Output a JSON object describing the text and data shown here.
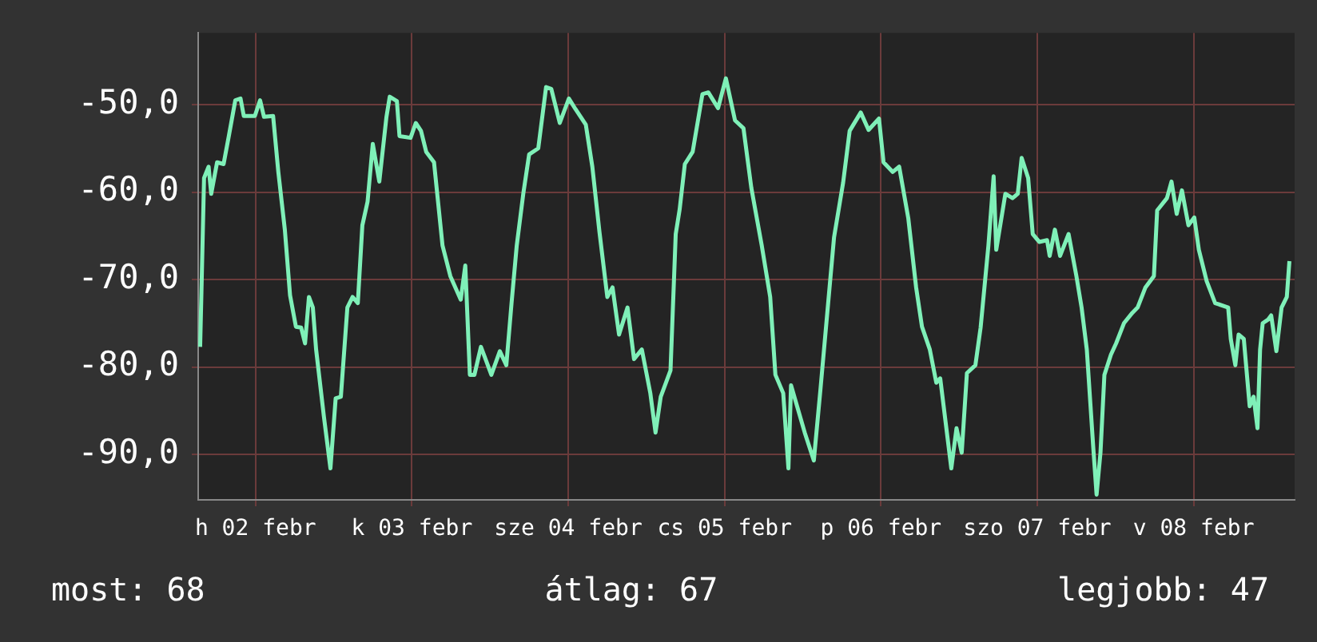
{
  "chart_data": {
    "type": "line",
    "x": [
      "--02-02T03:30",
      "--02-02T03:42",
      "--02-02T04:06",
      "--02-02T04:48",
      "--02-02T05:12",
      "--02-02T06:06",
      "--02-02T07:06",
      "--02-02T07:54",
      "--02-02T08:54",
      "--02-02T09:42",
      "--02-02T10:12",
      "--02-02T11:54",
      "--02-02T12:42",
      "--02-02T13:18",
      "--02-02T14:42",
      "--02-02T15:30",
      "--02-02T16:30",
      "--02-02T17:18",
      "--02-02T18:12",
      "--02-02T19:00",
      "--02-02T19:36",
      "--02-02T20:12",
      "--02-02T20:48",
      "--02-02T21:18",
      "--02-02T22:30",
      "--02-02T23:30",
      "--02-03T00:18",
      "--02-03T01:06",
      "--02-03T02:06",
      "--02-03T02:54",
      "--02-03T03:42",
      "--02-03T04:24",
      "--02-03T05:12",
      "--02-03T06:00",
      "--02-03T07:00",
      "--02-03T08:06",
      "--02-03T08:36",
      "--02-03T09:42",
      "--02-03T10:06",
      "--02-03T11:48",
      "--02-03T12:36",
      "--02-03T13:24",
      "--02-03T14:12",
      "--02-03T15:24",
      "--02-03T16:42",
      "--02-03T17:54",
      "--02-03T19:30",
      "--02-03T20:12",
      "--02-03T20:54",
      "--02-03T21:36",
      "--02-03T22:36",
      "--02-03T23:12",
      "--02-04T00:12",
      "--02-04T01:30",
      "--02-04T02:30",
      "--02-04T03:18",
      "--02-04T04:06",
      "--02-04T05:06",
      "--02-04T06:00",
      "--02-04T07:24",
      "--02-04T08:36",
      "--02-04T09:24",
      "--02-04T10:42",
      "--02-04T12:06",
      "--02-04T13:06",
      "--02-04T14:42",
      "--02-04T15:42",
      "--02-04T16:48",
      "--02-04T18:00",
      "--02-04T18:48",
      "--02-04T19:48",
      "--02-04T21:06",
      "--02-04T22:06",
      "--02-04T23:18",
      "--02-05T00:36",
      "--02-05T01:24",
      "--02-05T02:12",
      "--02-05T03:42",
      "--02-05T04:30",
      "--02-05T05:06",
      "--02-05T05:54",
      "--02-05T07:06",
      "--02-05T08:36",
      "--02-05T09:30",
      "--02-05T11:00",
      "--02-05T12:12",
      "--02-05T13:36",
      "--02-05T14:54",
      "--02-05T16:06",
      "--02-05T17:42",
      "--02-05T19:00",
      "--02-05T19:48",
      "--02-05T21:00",
      "--02-05T21:48",
      "--02-05T22:12",
      "--02-06T00:18",
      "--02-06T01:42",
      "--02-06T02:42",
      "--02-06T03:54",
      "--02-06T04:48",
      "--02-06T06:12",
      "--02-06T07:12",
      "--02-06T08:54",
      "--02-06T10:06",
      "--02-06T11:42",
      "--02-06T12:24",
      "--02-06T13:48",
      "--02-06T14:48",
      "--02-06T16:12",
      "--02-06T17:24",
      "--02-06T18:18",
      "--02-06T19:30",
      "--02-06T20:30",
      "--02-06T21:06",
      "--02-06T22:48",
      "--02-06T23:36",
      "--02-07T00:24",
      "--02-07T01:12",
      "--02-07T02:30",
      "--02-07T03:18",
      "--02-07T04:30",
      "--02-07T05:18",
      "--02-07T05:42",
      "--02-07T07:06",
      "--02-07T08:12",
      "--02-07T09:00",
      "--02-07T09:36",
      "--02-07T10:36",
      "--02-07T11:18",
      "--02-07T12:18",
      "--02-07T13:30",
      "--02-07T13:54",
      "--02-07T14:42",
      "--02-07T15:30",
      "--02-07T16:48",
      "--02-07T18:00",
      "--02-07T18:48",
      "--02-07T19:36",
      "--02-07T20:36",
      "--02-07T21:06",
      "--02-07T21:42",
      "--02-07T22:18",
      "--02-07T23:18",
      "--02-08T00:06",
      "--02-08T01:18",
      "--02-08T02:36",
      "--02-08T03:24",
      "--02-08T04:36",
      "--02-08T05:54",
      "--02-08T06:24",
      "--02-08T07:54",
      "--02-08T08:36",
      "--02-08T09:24",
      "--02-08T10:12",
      "--02-08T11:12",
      "--02-08T12:06",
      "--02-08T12:48",
      "--02-08T14:00",
      "--02-08T15:18",
      "--02-08T17:18",
      "--02-08T17:42",
      "--02-08T18:24",
      "--02-08T18:54",
      "--02-08T19:42",
      "--02-08T20:36",
      "--02-08T21:12",
      "--02-08T21:48",
      "--02-08T22:12",
      "--02-08T22:36",
      "--02-08T23:24",
      "--02-08T23:54",
      "--02-09T00:42",
      "--02-09T01:30",
      "--02-09T02:18",
      "--02-09T02:42"
    ],
    "series": [
      {
        "color": "#7ff0b8",
        "values": [
          -77.7,
          -71.4,
          -58.4,
          -57.1,
          -60.2,
          -56.6,
          -56.8,
          -53.6,
          -49.5,
          -49.3,
          -51.3,
          -51.3,
          -49.5,
          -51.4,
          -51.3,
          -57.7,
          -64.3,
          -71.8,
          -75.4,
          -75.5,
          -77.3,
          -72.0,
          -73.2,
          -78.0,
          -85.7,
          -91.6,
          -83.6,
          -83.4,
          -73.2,
          -72.0,
          -72.7,
          -63.8,
          -61.1,
          -54.5,
          -58.8,
          -51.4,
          -49.1,
          -49.6,
          -53.6,
          -53.8,
          -52.1,
          -53.0,
          -55.4,
          -56.6,
          -66.1,
          -69.6,
          -72.3,
          -68.4,
          -80.9,
          -80.9,
          -77.7,
          -78.9,
          -80.9,
          -78.2,
          -79.8,
          -72.7,
          -66.1,
          -60.2,
          -55.7,
          -55.0,
          -48.0,
          -48.2,
          -52.1,
          -49.3,
          -50.5,
          -52.3,
          -57.1,
          -64.6,
          -72.0,
          -70.9,
          -76.3,
          -73.2,
          -79.1,
          -78.0,
          -83.0,
          -87.5,
          -83.4,
          -80.4,
          -64.8,
          -62.0,
          -56.8,
          -55.4,
          -48.8,
          -48.6,
          -50.4,
          -47.0,
          -51.8,
          -52.7,
          -59.5,
          -66.1,
          -72.0,
          -80.9,
          -83.0,
          -91.6,
          -82.1,
          -87.5,
          -90.7,
          -82.7,
          -72.7,
          -65.2,
          -58.9,
          -53.0,
          -50.9,
          -52.9,
          -51.6,
          -56.6,
          -57.7,
          -57.1,
          -63.0,
          -70.9,
          -75.4,
          -78.0,
          -81.8,
          -81.3,
          -91.6,
          -87.0,
          -89.8,
          -80.7,
          -79.8,
          -75.5,
          -66.1,
          -58.2,
          -66.6,
          -60.2,
          -60.7,
          -60.2,
          -56.1,
          -58.4,
          -64.8,
          -65.7,
          -65.5,
          -67.3,
          -64.3,
          -67.3,
          -64.8,
          -69.6,
          -73.2,
          -78.0,
          -89.3,
          -94.6,
          -89.8,
          -80.9,
          -78.6,
          -77.3,
          -75.0,
          -73.8,
          -73.2,
          -70.9,
          -69.6,
          -62.1,
          -60.7,
          -58.8,
          -62.5,
          -59.8,
          -63.8,
          -62.9,
          -66.6,
          -70.2,
          -72.7,
          -73.2,
          -76.8,
          -79.8,
          -76.3,
          -76.8,
          -84.5,
          -83.4,
          -87.0,
          -78.0,
          -75.0,
          -74.6,
          -74.1,
          -78.2,
          -73.2,
          -72.0,
          -67.9
        ]
      }
    ],
    "xlim": [
      "--02-02T03:12",
      "--02-09T03:30"
    ],
    "xticks": [
      {
        "value": "--02-02T12:00",
        "label": "h 02 febr"
      },
      {
        "value": "--02-03T12:00",
        "label": "k 03 febr"
      },
      {
        "value": "--02-04T12:00",
        "label": "sze 04 febr"
      },
      {
        "value": "--02-05T12:00",
        "label": "cs 05 febr"
      },
      {
        "value": "--02-06T12:00",
        "label": "p 06 febr"
      },
      {
        "value": "--02-07T12:00",
        "label": "szo 07 febr"
      },
      {
        "value": "--02-08T12:00",
        "label": "v 08 febr"
      }
    ],
    "ylim": [
      -95.2,
      -41.8
    ],
    "yticks": [
      {
        "value": -90,
        "label": "-90,0"
      },
      {
        "value": -80,
        "label": "-80,0"
      },
      {
        "value": -70,
        "label": "-70,0"
      },
      {
        "value": -60,
        "label": "-60,0"
      },
      {
        "value": -50,
        "label": "-50,0"
      }
    ],
    "grid": true,
    "marker": "none",
    "line_style": "solid",
    "annotations": [
      "most: 68",
      "átlag: 67",
      "legjobb: 47"
    ]
  }
}
